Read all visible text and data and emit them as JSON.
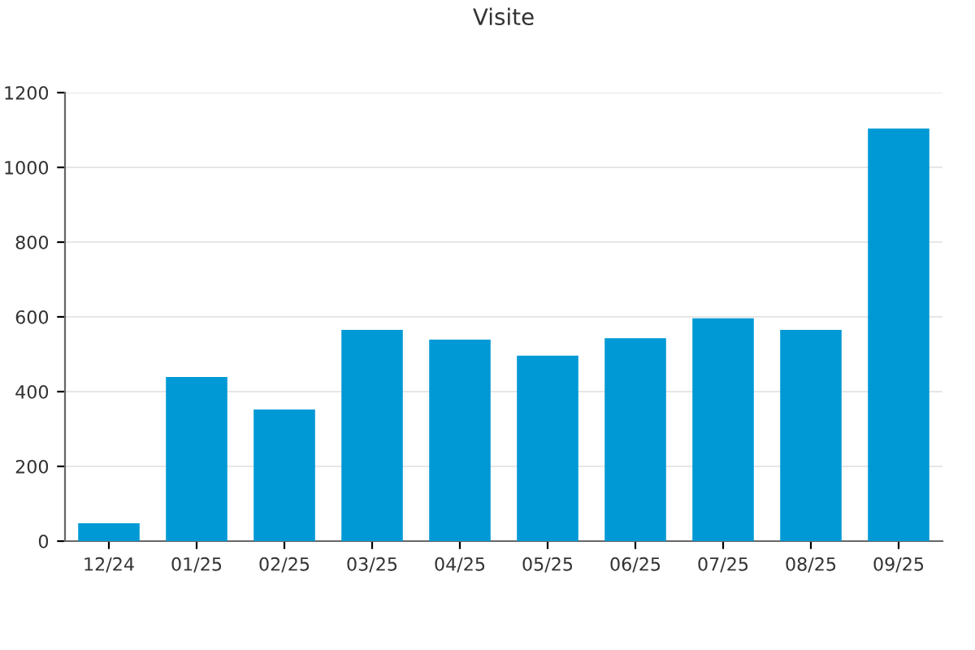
{
  "chart_data": {
    "type": "bar",
    "title": "Visite",
    "categories": [
      "12/24",
      "01/25",
      "02/25",
      "03/25",
      "04/25",
      "05/25",
      "06/25",
      "07/25",
      "08/25",
      "09/25"
    ],
    "values": [
      48,
      439,
      352,
      565,
      539,
      496,
      543,
      596,
      565,
      1104
    ],
    "color": "#0099d5",
    "ylim": [
      0,
      1200
    ],
    "yticks": [
      0,
      200,
      400,
      600,
      800,
      1000,
      1200
    ],
    "grid": "y"
  }
}
